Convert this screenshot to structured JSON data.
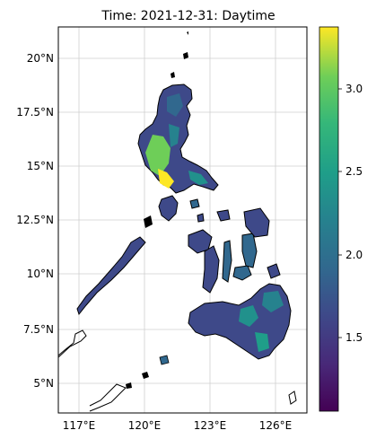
{
  "title": "Time: 2021-12-31: Daytime",
  "map": {
    "lat_ticks": [
      "20°N",
      "17.5°N",
      "15°N",
      "12.5°N",
      "10°N",
      "7.5°N",
      "5°N"
    ],
    "lon_ticks": [
      "117°E",
      "120°E",
      "123°E",
      "126°E"
    ],
    "gridlines": true
  },
  "colorbar": {
    "tick_labels": [
      "1.5",
      "2.0",
      "2.5",
      "3.0"
    ],
    "colormap": "viridis"
  },
  "colors": {
    "coast": "#000000",
    "grid": "#b0b0b0",
    "viridis_dark": "#440154",
    "viridis_blue": "#31688e",
    "viridis_teal": "#21918c",
    "viridis_green": "#5ec962",
    "viridis_yellow": "#fde725"
  }
}
